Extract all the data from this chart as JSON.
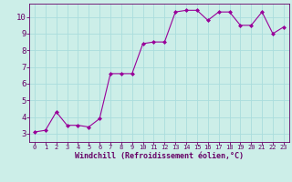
{
  "x": [
    0,
    1,
    2,
    3,
    4,
    5,
    6,
    7,
    8,
    9,
    10,
    11,
    12,
    13,
    14,
    15,
    16,
    17,
    18,
    19,
    20,
    21,
    22,
    23
  ],
  "y": [
    3.1,
    3.2,
    4.3,
    3.5,
    3.5,
    3.4,
    3.9,
    6.6,
    6.6,
    6.6,
    8.4,
    8.5,
    8.5,
    10.3,
    10.4,
    10.4,
    9.8,
    10.3,
    10.3,
    9.5,
    9.5,
    10.3,
    9.0,
    9.4
  ],
  "line_color": "#990099",
  "marker": "D",
  "marker_size": 2.0,
  "bg_color": "#cceee8",
  "grid_color": "#aadddd",
  "xlabel": "Windchill (Refroidissement éolien,°C)",
  "xlabel_color": "#660066",
  "tick_color": "#660066",
  "spine_color": "#660066",
  "ylim": [
    2.5,
    10.8
  ],
  "xlim": [
    -0.5,
    23.5
  ],
  "yticks": [
    3,
    4,
    5,
    6,
    7,
    8,
    9,
    10
  ],
  "xticks": [
    0,
    1,
    2,
    3,
    4,
    5,
    6,
    7,
    8,
    9,
    10,
    11,
    12,
    13,
    14,
    15,
    16,
    17,
    18,
    19,
    20,
    21,
    22,
    23
  ],
  "xlabel_fontsize": 6.0,
  "tick_fontsize_x": 5.0,
  "tick_fontsize_y": 6.5
}
